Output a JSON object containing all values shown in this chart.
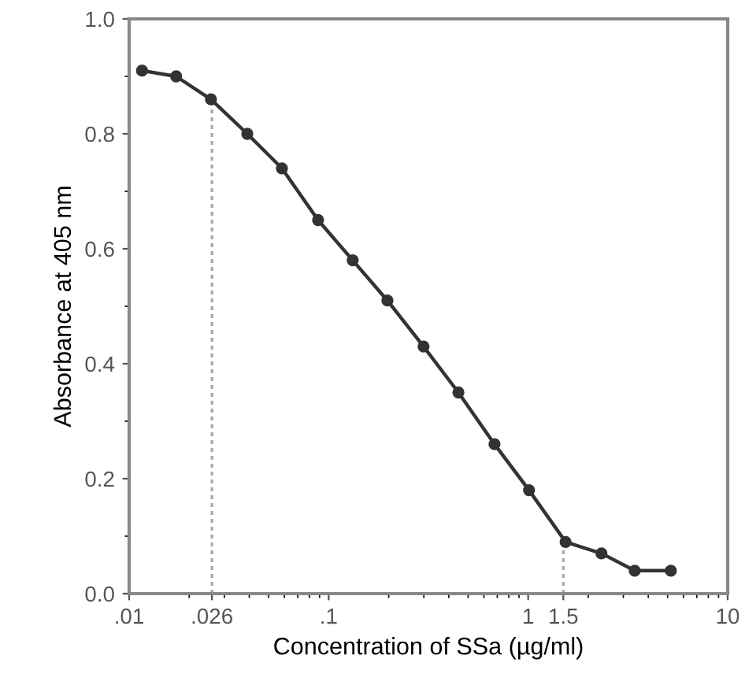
{
  "chart_data": {
    "type": "line",
    "xlabel": "Concentration of SSa (µg/ml)",
    "ylabel": "Absorbance at 405 nm",
    "log": "x",
    "xlim": [
      0.01,
      10
    ],
    "xticks": [
      {
        "value": 0.01,
        "label": ".01"
      },
      {
        "value": 0.026,
        "label": ".026"
      },
      {
        "value": 0.1,
        "label": ".1"
      },
      {
        "value": 1,
        "label": "1"
      },
      {
        "value": 1.5,
        "label": "1.5"
      },
      {
        "value": 10,
        "label": "10"
      }
    ],
    "ylim": [
      0,
      1
    ],
    "yticks": [
      {
        "value": 0,
        "label": "0.0"
      },
      0.2,
      0.4,
      0.6,
      0.8,
      {
        "value": 1,
        "label": "1.0"
      }
    ],
    "grid": false,
    "marker": "circle",
    "line_style": "solid",
    "series": [
      {
        "color": "#333333",
        "x": [
          0.0116,
          0.0172,
          0.0257,
          0.0391,
          0.0583,
          0.0885,
          0.132,
          0.197,
          0.299,
          0.447,
          0.678,
          1.01,
          1.54,
          2.33,
          3.42,
          5.19
        ],
        "values": [
          0.91,
          0.9,
          0.86,
          0.8,
          0.74,
          0.65,
          0.58,
          0.51,
          0.43,
          0.35,
          0.26,
          0.18,
          0.09,
          0.07,
          0.04,
          0.04
        ]
      }
    ],
    "ref_lines": [
      {
        "axis": "x",
        "value": 0.026,
        "color": "#aaaaaa",
        "line_style": "dotted"
      },
      {
        "axis": "x",
        "value": 1.5,
        "color": "#aaaaaa",
        "line_style": "dotted"
      }
    ]
  }
}
